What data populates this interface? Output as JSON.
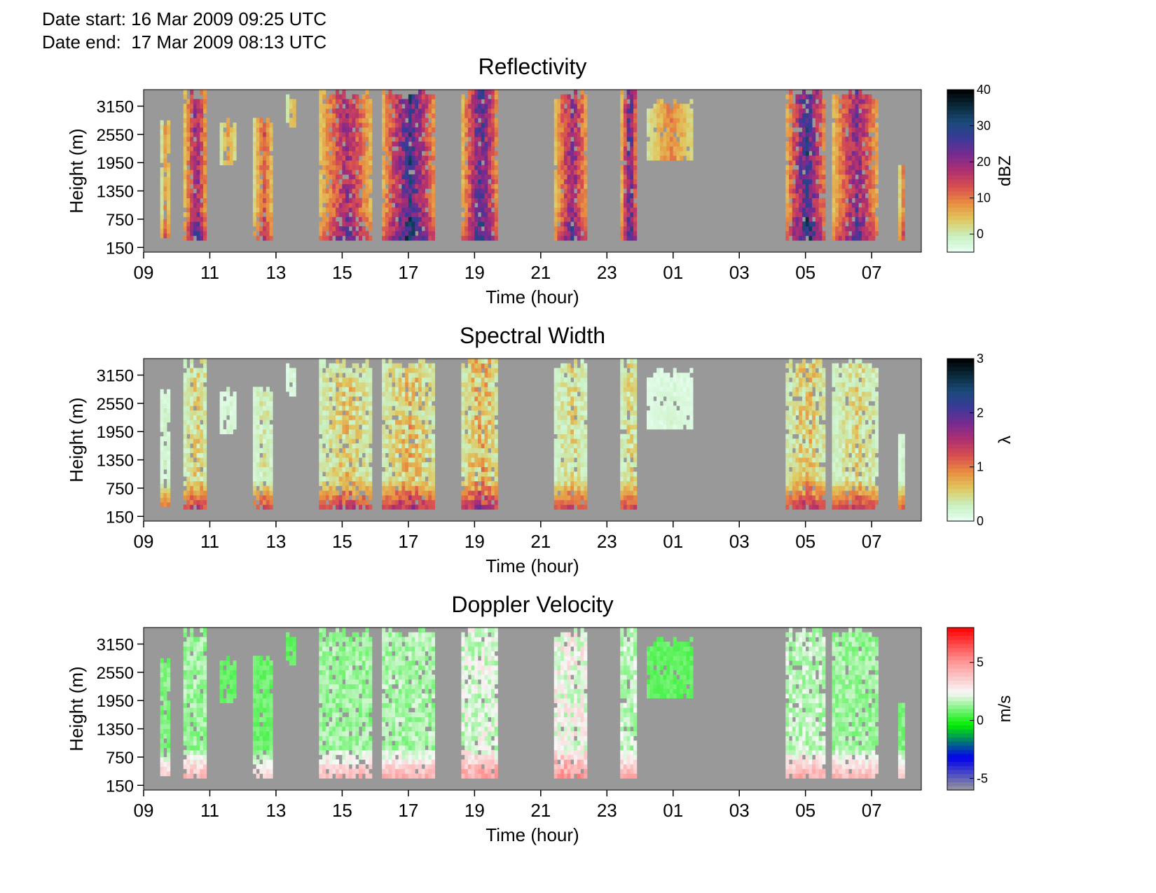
{
  "header": {
    "date_start": "Date start: 16 Mar 2009 09:25 UTC",
    "date_end": "Date end:  17 Mar 2009 08:13 UTC"
  },
  "chart_data": [
    {
      "type": "heatmap",
      "title": "Reflectivity",
      "xlabel": "Time (hour)",
      "ylabel": "Height (m)",
      "x_ticks": [
        "09",
        "11",
        "13",
        "15",
        "17",
        "19",
        "21",
        "23",
        "01",
        "03",
        "05",
        "07"
      ],
      "x_tick_hours_elapsed": [
        0,
        2,
        4,
        6,
        8,
        10,
        12,
        14,
        16,
        18,
        20,
        22
      ],
      "xlim_hours_elapsed": [
        0,
        23.5
      ],
      "y_ticks": [
        150,
        750,
        1350,
        1950,
        2550,
        3150
      ],
      "ylim": [
        50,
        3500
      ],
      "colorbar": {
        "label": "dBZ",
        "min": -5,
        "max": 40,
        "ticks": [
          0,
          10,
          20,
          30,
          40
        ],
        "stops": [
          "#e8fff4",
          "#c8f0c0",
          "#e0c860",
          "#e89040",
          "#d85050",
          "#b03070",
          "#7a2a90",
          "#3a3a98",
          "#1a4a7a",
          "#0a2a3a",
          "#000000"
        ]
      },
      "background_color": "#999999"
    },
    {
      "type": "heatmap",
      "title": "Spectral Width",
      "xlabel": "Time (hour)",
      "ylabel": "Height (m)",
      "x_ticks": [
        "09",
        "11",
        "13",
        "15",
        "17",
        "19",
        "21",
        "23",
        "01",
        "03",
        "05",
        "07"
      ],
      "x_tick_hours_elapsed": [
        0,
        2,
        4,
        6,
        8,
        10,
        12,
        14,
        16,
        18,
        20,
        22
      ],
      "xlim_hours_elapsed": [
        0,
        23.5
      ],
      "y_ticks": [
        150,
        750,
        1350,
        1950,
        2550,
        3150
      ],
      "ylim": [
        50,
        3500
      ],
      "colorbar": {
        "label": "λ",
        "min": 0,
        "max": 3,
        "ticks": [
          0,
          1,
          2,
          3
        ],
        "stops": [
          "#e8fff4",
          "#c8f0c0",
          "#e0c860",
          "#e89040",
          "#d85050",
          "#b03070",
          "#7a2a90",
          "#3a3a98",
          "#1a4a7a",
          "#0a2a3a",
          "#000000"
        ]
      },
      "background_color": "#999999"
    },
    {
      "type": "heatmap",
      "title": "Doppler Velocity",
      "xlabel": "Time (hour)",
      "ylabel": "Height (m)",
      "x_ticks": [
        "09",
        "11",
        "13",
        "15",
        "17",
        "19",
        "21",
        "23",
        "01",
        "03",
        "05",
        "07"
      ],
      "x_tick_hours_elapsed": [
        0,
        2,
        4,
        6,
        8,
        10,
        12,
        14,
        16,
        18,
        20,
        22
      ],
      "xlim_hours_elapsed": [
        0,
        23.5
      ],
      "y_ticks": [
        150,
        750,
        1350,
        1950,
        2550,
        3150
      ],
      "ylim": [
        50,
        3500
      ],
      "colorbar": {
        "label": "m/s",
        "min": -6,
        "max": 8,
        "ticks": [
          -5,
          0,
          5
        ],
        "stops": [
          "#999999",
          "#0000ee",
          "#00ee00",
          "#f8f8f8",
          "#ff9090",
          "#ff0000"
        ]
      },
      "background_color": "#999999"
    }
  ],
  "echo_episodes": [
    {
      "hour_start": 0.5,
      "hour_end": 0.75,
      "top_m": 2900,
      "bottom_m": 350,
      "peak_dbz": 12,
      "peak_width": 0.6,
      "velocity_ms": 1.5
    },
    {
      "hour_start": 1.2,
      "hour_end": 1.9,
      "top_m": 3500,
      "bottom_m": 300,
      "peak_dbz": 26,
      "peak_width": 1.3,
      "velocity_ms": 2.0
    },
    {
      "hour_start": 2.3,
      "hour_end": 2.75,
      "top_m": 2900,
      "bottom_m": 1900,
      "peak_dbz": 10,
      "peak_width": 0.5,
      "velocity_ms": 1.0
    },
    {
      "hour_start": 3.3,
      "hour_end": 3.9,
      "top_m": 2900,
      "bottom_m": 300,
      "peak_dbz": 16,
      "peak_width": 0.9,
      "velocity_ms": 1.2
    },
    {
      "hour_start": 4.3,
      "hour_end": 4.6,
      "top_m": 3500,
      "bottom_m": 2700,
      "peak_dbz": 8,
      "peak_width": 0.4,
      "velocity_ms": 1.0
    },
    {
      "hour_start": 5.3,
      "hour_end": 6.9,
      "top_m": 3500,
      "bottom_m": 300,
      "peak_dbz": 24,
      "peak_width": 1.4,
      "velocity_ms": 2.0
    },
    {
      "hour_start": 7.2,
      "hour_end": 8.8,
      "top_m": 3500,
      "bottom_m": 300,
      "peak_dbz": 34,
      "peak_width": 1.6,
      "velocity_ms": 2.2
    },
    {
      "hour_start": 9.6,
      "hour_end": 10.7,
      "top_m": 3500,
      "bottom_m": 300,
      "peak_dbz": 32,
      "peak_width": 1.8,
      "velocity_ms": 3.0
    },
    {
      "hour_start": 12.4,
      "hour_end": 13.4,
      "top_m": 3500,
      "bottom_m": 300,
      "peak_dbz": 26,
      "peak_width": 1.2,
      "velocity_ms": 3.5
    },
    {
      "hour_start": 14.4,
      "hour_end": 14.9,
      "top_m": 3500,
      "bottom_m": 300,
      "peak_dbz": 32,
      "peak_width": 1.3,
      "velocity_ms": 2.5
    },
    {
      "hour_start": 15.2,
      "hour_end": 16.6,
      "top_m": 3300,
      "bottom_m": 2000,
      "peak_dbz": 12,
      "peak_width": 0.4,
      "velocity_ms": 1.0
    },
    {
      "hour_start": 19.4,
      "hour_end": 20.6,
      "top_m": 3500,
      "bottom_m": 300,
      "peak_dbz": 34,
      "peak_width": 1.5,
      "velocity_ms": 2.5
    },
    {
      "hour_start": 20.8,
      "hour_end": 22.2,
      "top_m": 3500,
      "bottom_m": 300,
      "peak_dbz": 26,
      "peak_width": 1.2,
      "velocity_ms": 2.0
    },
    {
      "hour_start": 22.8,
      "hour_end": 22.95,
      "top_m": 2000,
      "bottom_m": 300,
      "peak_dbz": 16,
      "peak_width": 0.6,
      "velocity_ms": 1.5
    }
  ]
}
